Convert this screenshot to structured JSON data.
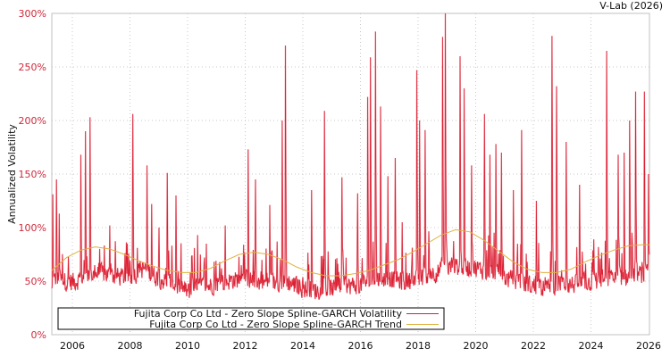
{
  "credit": "V-Lab (2026)",
  "colors": {
    "volatility": "#dc1e32",
    "volatility_light": "#ec8c96",
    "trend": "#e0b040",
    "grid": "#c8c8c8",
    "axis": "#c0c0c0",
    "ytick": "#d0283a"
  },
  "chart_data": {
    "type": "line",
    "title": "",
    "xlabel": "",
    "ylabel": "Annualized Volatility",
    "ylim": [
      0,
      300
    ],
    "xlim": [
      2005.29,
      2026.03
    ],
    "grid": true,
    "legend_position": "lower-left",
    "y_ticks": [
      "0%",
      "50%",
      "100%",
      "150%",
      "200%",
      "250%",
      "300%"
    ],
    "x_ticks": [
      "2006",
      "2008",
      "2010",
      "2012",
      "2014",
      "2016",
      "2018",
      "2020",
      "2022",
      "2024",
      "2026"
    ],
    "series": [
      {
        "name": "Fujita Corp Co Ltd - Zero Slope Spline-GARCH Volatility",
        "baseline": [
          [
            2005.3,
            45
          ],
          [
            2006.0,
            42
          ],
          [
            2006.5,
            48
          ],
          [
            2007.0,
            50
          ],
          [
            2007.5,
            47
          ],
          [
            2008.0,
            46
          ],
          [
            2008.5,
            55
          ],
          [
            2009.0,
            45
          ],
          [
            2009.5,
            40
          ],
          [
            2010.0,
            33
          ],
          [
            2010.5,
            38
          ],
          [
            2011.0,
            40
          ],
          [
            2011.5,
            44
          ],
          [
            2012.0,
            45
          ],
          [
            2012.5,
            42
          ],
          [
            2013.0,
            40
          ],
          [
            2013.5,
            42
          ],
          [
            2014.0,
            36
          ],
          [
            2014.5,
            34
          ],
          [
            2015.0,
            36
          ],
          [
            2015.5,
            38
          ],
          [
            2016.0,
            40
          ],
          [
            2016.5,
            45
          ],
          [
            2017.0,
            46
          ],
          [
            2017.5,
            42
          ],
          [
            2018.0,
            45
          ],
          [
            2018.5,
            50
          ],
          [
            2019.0,
            55
          ],
          [
            2019.5,
            57
          ],
          [
            2020.0,
            55
          ],
          [
            2020.5,
            52
          ],
          [
            2021.0,
            46
          ],
          [
            2021.5,
            42
          ],
          [
            2022.0,
            38
          ],
          [
            2022.5,
            36
          ],
          [
            2023.0,
            40
          ],
          [
            2023.5,
            40
          ],
          [
            2024.0,
            42
          ],
          [
            2024.5,
            44
          ],
          [
            2025.0,
            46
          ],
          [
            2025.5,
            48
          ],
          [
            2026.0,
            50
          ]
        ],
        "peaks": [
          [
            2005.32,
            131
          ],
          [
            2005.45,
            145
          ],
          [
            2005.55,
            113
          ],
          [
            2006.3,
            168
          ],
          [
            2006.45,
            190
          ],
          [
            2006.62,
            203
          ],
          [
            2007.3,
            102
          ],
          [
            2007.9,
            85
          ],
          [
            2008.1,
            206
          ],
          [
            2008.6,
            158
          ],
          [
            2008.75,
            122
          ],
          [
            2009.0,
            100
          ],
          [
            2009.3,
            151
          ],
          [
            2009.6,
            130
          ],
          [
            2010.35,
            93
          ],
          [
            2010.65,
            85
          ],
          [
            2011.3,
            102
          ],
          [
            2012.1,
            173
          ],
          [
            2012.35,
            145
          ],
          [
            2012.85,
            121
          ],
          [
            2013.28,
            200
          ],
          [
            2013.4,
            270
          ],
          [
            2014.3,
            135
          ],
          [
            2014.75,
            209
          ],
          [
            2015.35,
            147
          ],
          [
            2015.9,
            132
          ],
          [
            2016.25,
            222
          ],
          [
            2016.35,
            259
          ],
          [
            2016.52,
            283
          ],
          [
            2016.7,
            213
          ],
          [
            2016.95,
            148
          ],
          [
            2017.2,
            165
          ],
          [
            2017.45,
            105
          ],
          [
            2017.95,
            247
          ],
          [
            2018.05,
            200
          ],
          [
            2018.25,
            191
          ],
          [
            2018.85,
            278
          ],
          [
            2018.95,
            300
          ],
          [
            2019.45,
            260
          ],
          [
            2019.6,
            230
          ],
          [
            2019.85,
            158
          ],
          [
            2020.3,
            206
          ],
          [
            2020.5,
            168
          ],
          [
            2020.7,
            178
          ],
          [
            2020.9,
            170
          ],
          [
            2021.3,
            135
          ],
          [
            2021.6,
            191
          ],
          [
            2022.1,
            125
          ],
          [
            2022.65,
            279
          ],
          [
            2022.8,
            232
          ],
          [
            2023.15,
            180
          ],
          [
            2023.6,
            140
          ],
          [
            2024.55,
            265
          ],
          [
            2024.95,
            168
          ],
          [
            2025.15,
            170
          ],
          [
            2025.35,
            200
          ],
          [
            2025.55,
            227
          ],
          [
            2025.85,
            227
          ],
          [
            2026.0,
            150
          ]
        ]
      },
      {
        "name": "Fujita Corp Co Ltd - Zero Slope Spline-GARCH Trend",
        "points": [
          [
            2005.29,
            60
          ],
          [
            2005.8,
            72
          ],
          [
            2006.3,
            79
          ],
          [
            2006.8,
            82
          ],
          [
            2007.3,
            80
          ],
          [
            2007.8,
            75
          ],
          [
            2008.3,
            69
          ],
          [
            2008.8,
            64
          ],
          [
            2009.3,
            60
          ],
          [
            2009.8,
            58
          ],
          [
            2010.3,
            58
          ],
          [
            2010.8,
            62
          ],
          [
            2011.3,
            69
          ],
          [
            2011.8,
            75
          ],
          [
            2012.3,
            77
          ],
          [
            2012.8,
            75
          ],
          [
            2013.3,
            70
          ],
          [
            2013.8,
            63
          ],
          [
            2014.3,
            58
          ],
          [
            2014.8,
            55
          ],
          [
            2015.3,
            55
          ],
          [
            2015.8,
            57
          ],
          [
            2016.3,
            60
          ],
          [
            2016.8,
            65
          ],
          [
            2017.3,
            70
          ],
          [
            2017.8,
            77
          ],
          [
            2018.3,
            85
          ],
          [
            2018.8,
            93
          ],
          [
            2019.3,
            98
          ],
          [
            2019.8,
            96
          ],
          [
            2020.3,
            88
          ],
          [
            2020.8,
            78
          ],
          [
            2021.3,
            68
          ],
          [
            2021.8,
            61
          ],
          [
            2022.3,
            58
          ],
          [
            2022.8,
            58
          ],
          [
            2023.3,
            61
          ],
          [
            2023.8,
            68
          ],
          [
            2024.3,
            74
          ],
          [
            2024.8,
            79
          ],
          [
            2025.3,
            83
          ],
          [
            2025.8,
            84
          ],
          [
            2026.03,
            84
          ]
        ]
      }
    ]
  },
  "legend": {
    "items": [
      {
        "label": "Fujita Corp Co Ltd - Zero Slope Spline-GARCH Volatility",
        "color": "#dc1e32"
      },
      {
        "label": "Fujita Corp Co Ltd - Zero Slope Spline-GARCH Trend",
        "color": "#e0b040"
      }
    ]
  }
}
